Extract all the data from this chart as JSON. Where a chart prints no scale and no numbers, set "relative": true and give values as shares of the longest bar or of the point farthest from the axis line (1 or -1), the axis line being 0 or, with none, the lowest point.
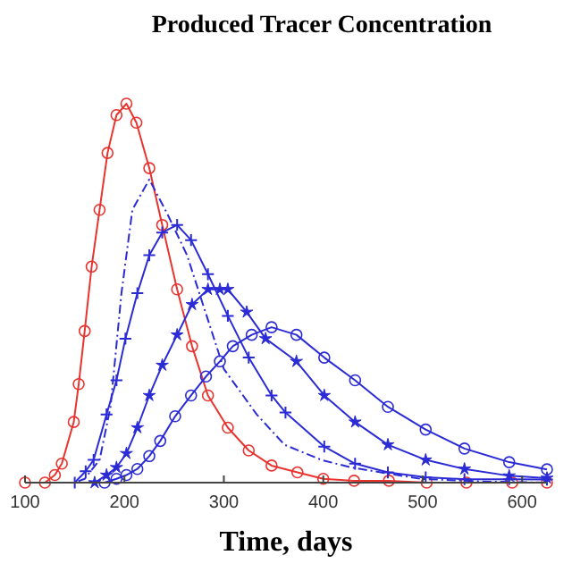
{
  "chart_data": {
    "type": "line",
    "title": "Produced Tracer Concentration",
    "xlabel": "Time, days",
    "relative": true,
    "xlim": [
      100,
      625
    ],
    "xticks": [
      100,
      200,
      300,
      400,
      500,
      600
    ],
    "grid": false,
    "series": [
      {
        "color": "#e8332e",
        "marker": "circle",
        "line_style": "solid",
        "x": [
          100,
          120,
          130,
          137,
          149,
          154,
          160,
          167,
          175,
          183,
          192,
          202,
          212,
          225,
          238,
          253,
          268,
          284,
          304,
          325,
          348,
          374,
          400,
          431,
          466,
          504,
          544,
          590,
          625
        ],
        "values": [
          0,
          0,
          0.02,
          0.05,
          0.16,
          0.26,
          0.4,
          0.57,
          0.72,
          0.87,
          0.97,
          1,
          0.95,
          0.83,
          0.68,
          0.51,
          0.36,
          0.23,
          0.145,
          0.085,
          0.045,
          0.027,
          0.01,
          0.005,
          0.005,
          0,
          0,
          0,
          0
        ]
      },
      {
        "color": "#2b2bd6",
        "marker": "none",
        "line_style": "dashdot",
        "x": [
          100,
          150,
          160,
          175,
          186,
          197,
          208,
          225,
          243,
          263,
          279,
          300,
          333,
          361,
          398,
          428,
          498,
          560,
          625
        ],
        "values": [
          0,
          0,
          0.01,
          0.06,
          0.2,
          0.5,
          0.72,
          0.8,
          0.71,
          0.6,
          0.47,
          0.3,
          0.18,
          0.1,
          0.06,
          0.04,
          0.01,
          0.003,
          0
        ]
      },
      {
        "color": "#2b2bd6",
        "marker": "cross",
        "line_style": "solid",
        "x": [
          150,
          161,
          169,
          182,
          192,
          201,
          213,
          225,
          238,
          253,
          267,
          284,
          304,
          325,
          348,
          362,
          401,
          432,
          465,
          503,
          542,
          587,
          625
        ],
        "values": [
          0,
          0.03,
          0.06,
          0.18,
          0.27,
          0.38,
          0.5,
          0.6,
          0.66,
          0.68,
          0.64,
          0.55,
          0.44,
          0.33,
          0.23,
          0.185,
          0.095,
          0.05,
          0.027,
          0.014,
          0.009,
          0.009,
          0.008
        ]
      },
      {
        "color": "#2b2bd6",
        "marker": "star",
        "line_style": "solid",
        "x": [
          170,
          182,
          192,
          202,
          213,
          225,
          238,
          253,
          268,
          284,
          296,
          304,
          323,
          342,
          373,
          401,
          432,
          465,
          503,
          542,
          587,
          625
        ],
        "values": [
          0,
          0.02,
          0.04,
          0.077,
          0.145,
          0.23,
          0.31,
          0.39,
          0.47,
          0.51,
          0.51,
          0.51,
          0.45,
          0.38,
          0.32,
          0.23,
          0.16,
          0.1,
          0.06,
          0.036,
          0.018,
          0.012
        ]
      },
      {
        "color": "#2b2bd6",
        "marker": "circle",
        "line_style": "solid",
        "x": [
          180,
          192,
          202,
          213,
          225,
          236,
          251,
          267,
          282,
          296,
          309,
          328,
          348,
          373,
          401,
          432,
          465,
          503,
          542,
          587,
          625
        ],
        "values": [
          0,
          0.01,
          0.02,
          0.036,
          0.07,
          0.11,
          0.175,
          0.23,
          0.28,
          0.32,
          0.36,
          0.39,
          0.41,
          0.39,
          0.33,
          0.27,
          0.2,
          0.14,
          0.09,
          0.054,
          0.035
        ]
      }
    ]
  }
}
